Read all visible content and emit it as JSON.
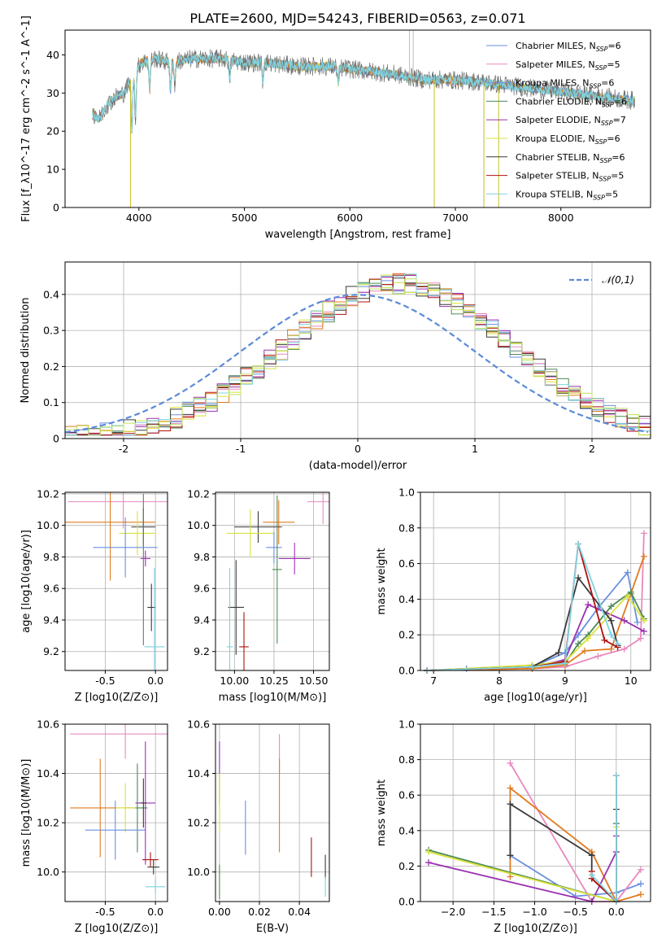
{
  "figure_title": "PLATE=2600, MJD=54243, FIBERID=0563, z=0.071",
  "colors": {
    "chabrier_miles": "#6a8fe0",
    "salpeter_miles": "#e889c0",
    "kroupa_miles": "#6a8fe0",
    "chabrier_elodie": "#4d8a55",
    "salpeter_elodie": "#9b30b0",
    "kroupa_elodie": "#d8e23c",
    "chabrier_stelib": "#3a3a3a",
    "salpeter_stelib": "#b01010",
    "kroupa_stelib": "#7fd3e0",
    "orange": "#e07b1f",
    "olive": "#bfe060",
    "spectrum": "#707070"
  },
  "chart_data": [
    {
      "type": "line",
      "title": "PLATE=2600, MJD=54243, FIBERID=0563, z=0.071",
      "xlabel": "wavelength [Angstrom, rest frame]",
      "ylabel": "Flux [f_λ10^-17 erg cm^-2 s^-1 A^-1]",
      "xlim": [
        3300,
        8850
      ],
      "ylim": [
        0,
        46.5
      ],
      "xticks": [
        4000,
        5000,
        6000,
        7000,
        8000
      ],
      "yticks": [
        0,
        10,
        20,
        30,
        40
      ],
      "legend": [
        "Chabrier MILES, N_SSP=6",
        "Salpeter MILES, N_SSP=5",
        "Kroupa MILES, N_SSP=6",
        "Chabrier ELODIE, N_SSP=6",
        "Salpeter ELODIE, N_SSP=7",
        "Kroupa ELODIE, N_SSP=6",
        "Chabrier STELIB, N_SSP=6",
        "Salpeter STELIB, N_SSP=5",
        "Kroupa STELIB, N_SSP=5"
      ],
      "legend_keys": [
        "chabrier_miles",
        "salpeter_miles",
        "kroupa_miles",
        "chabrier_elodie",
        "salpeter_elodie",
        "kroupa_elodie",
        "chabrier_stelib",
        "salpeter_stelib",
        "kroupa_stelib"
      ],
      "legend_placement": "right",
      "spectrum_envelope": {
        "x": [
          3560,
          3620,
          3700,
          3780,
          3860,
          3950,
          4020,
          4150,
          4300,
          4500,
          4800,
          5000,
          5200,
          5500,
          5800,
          6100,
          6400,
          6700,
          6900,
          7200,
          7500,
          7800,
          8100,
          8400,
          8700
        ],
        "y": [
          25,
          23,
          27,
          29,
          30,
          35,
          38,
          39,
          38,
          39,
          39,
          38,
          38,
          37,
          37,
          36,
          35,
          33.5,
          33.5,
          33,
          32,
          31,
          30,
          29,
          28
        ]
      }
    },
    {
      "type": "histogram",
      "xlabel": "(data-model)/error",
      "ylabel": "Normed distribution",
      "xlim": [
        -2.5,
        2.5
      ],
      "ylim": [
        0,
        0.49
      ],
      "xticks": [
        -2,
        -1,
        0,
        1,
        2
      ],
      "yticks": [
        0.0,
        0.1,
        0.2,
        0.3,
        0.4
      ],
      "legend": [
        "𝒩(0,1)"
      ],
      "legend_placement": "top-right",
      "grid": true
    },
    {
      "type": "scatter",
      "xlabel": "Z [log10(Z/Z⊙)]",
      "ylabel": "age  [log10(age/yr)]",
      "xlim": [
        -0.9,
        0.12
      ],
      "ylim": [
        9.08,
        10.21
      ],
      "xticks": [
        -0.5,
        0.0
      ],
      "yticks": [
        9.2,
        9.4,
        9.6,
        9.8,
        10.0,
        10.2
      ],
      "points": [
        {
          "c": "salpeter_miles",
          "x": -0.32,
          "y": 10.15,
          "ex": 0.55,
          "ey": 0.17
        },
        {
          "c": "orange",
          "x": -0.45,
          "y": 10.02,
          "ex": 0.45,
          "ey": 0.37
        },
        {
          "c": "chabrier_stelib",
          "x": -0.12,
          "y": 9.99,
          "ex": 0.12,
          "ey": 0.12
        },
        {
          "c": "kroupa_elodie",
          "x": -0.18,
          "y": 9.95,
          "ex": 0.18,
          "ey": 0.14
        },
        {
          "c": "chabrier_miles",
          "x": -0.3,
          "y": 9.86,
          "ex": 0.32,
          "ey": 0.19
        },
        {
          "c": "salpeter_elodie",
          "x": -0.1,
          "y": 9.79,
          "ex": 0.05,
          "ey": 0.05
        },
        {
          "c": "chabrier_elodie",
          "x": -0.12,
          "y": 9.72,
          "ex": 0.0,
          "ey": 0.48
        },
        {
          "c": "chabrier_stelib",
          "x": -0.04,
          "y": 9.48,
          "ex": 0.04,
          "ey": 0.15
        },
        {
          "c": "kroupa_stelib",
          "x": -0.01,
          "y": 9.23,
          "ex": 0.1,
          "ey": 0.5
        }
      ]
    },
    {
      "type": "scatter",
      "xlabel": "mass [log10(M/M⊙)]",
      "ylabel": "",
      "xlim": [
        9.88,
        10.6
      ],
      "ylim": [
        9.08,
        10.21
      ],
      "xticks": [
        10.0,
        10.25,
        10.5
      ],
      "yticks": [
        9.2,
        9.4,
        9.6,
        9.8,
        10.0,
        10.2
      ],
      "points": [
        {
          "c": "salpeter_miles",
          "x": 10.56,
          "y": 10.15,
          "ex": 0.1,
          "ey": 0.14
        },
        {
          "c": "orange",
          "x": 10.28,
          "y": 10.02,
          "ex": 0.1,
          "ey": 0.14
        },
        {
          "c": "chabrier_stelib",
          "x": 10.15,
          "y": 9.99,
          "ex": 0.15,
          "ey": 0.1
        },
        {
          "c": "kroupa_elodie",
          "x": 10.1,
          "y": 9.95,
          "ex": 0.15,
          "ey": 0.15
        },
        {
          "c": "chabrier_miles",
          "x": 10.25,
          "y": 9.86,
          "ex": 0.05,
          "ey": 0.1
        },
        {
          "c": "salpeter_elodie",
          "x": 10.38,
          "y": 9.79,
          "ex": 0.1,
          "ey": 0.1
        },
        {
          "c": "chabrier_elodie",
          "x": 10.27,
          "y": 9.72,
          "ex": 0.03,
          "ey": 0.47
        },
        {
          "c": "chabrier_stelib",
          "x": 10.01,
          "y": 9.48,
          "ex": 0.05,
          "ey": 0.3
        },
        {
          "c": "salpeter_stelib",
          "x": 10.06,
          "y": 9.23,
          "ex": 0.03,
          "ey": 0.22
        },
        {
          "c": "kroupa_stelib",
          "x": 9.97,
          "y": 9.23,
          "ex": 0.02,
          "ey": 0.5
        }
      ]
    },
    {
      "type": "line",
      "xlabel": "age  [log10(age/yr)]",
      "ylabel": "mass weight",
      "xlim": [
        6.8,
        10.3
      ],
      "ylim": [
        0,
        1.0
      ],
      "xticks": [
        7,
        8,
        9,
        10
      ],
      "yticks": [
        0.0,
        0.2,
        0.4,
        0.6,
        0.8,
        1.0
      ],
      "series": [
        {
          "c": "chabrier_miles",
          "x": [
            6.9,
            7.5,
            8.5,
            9.0,
            9.2,
            9.5,
            9.95,
            10.1
          ],
          "y": [
            0.0,
            0.01,
            0.02,
            0.1,
            0.2,
            0.35,
            0.55,
            0.27
          ]
        },
        {
          "c": "salpeter_miles",
          "x": [
            6.9,
            8.5,
            9.0,
            9.5,
            9.9,
            10.15,
            10.2
          ],
          "y": [
            0.0,
            0.01,
            0.02,
            0.08,
            0.12,
            0.18,
            0.77
          ]
        },
        {
          "c": "orange",
          "x": [
            6.9,
            8.5,
            9.0,
            9.3,
            9.7,
            10.0,
            10.2
          ],
          "y": [
            0.0,
            0.01,
            0.03,
            0.11,
            0.12,
            0.43,
            0.64
          ]
        },
        {
          "c": "chabrier_elodie",
          "x": [
            6.9,
            8.5,
            9.0,
            9.2,
            9.35,
            9.7,
            10.0,
            10.2
          ],
          "y": [
            0.0,
            0.02,
            0.04,
            0.15,
            0.2,
            0.36,
            0.44,
            0.29
          ]
        },
        {
          "c": "salpeter_elodie",
          "x": [
            6.9,
            8.5,
            9.0,
            9.35,
            9.9,
            10.2
          ],
          "y": [
            0.0,
            0.02,
            0.06,
            0.37,
            0.28,
            0.22
          ]
        },
        {
          "c": "kroupa_elodie",
          "x": [
            6.9,
            8.5,
            9.0,
            9.35,
            9.95,
            10.2
          ],
          "y": [
            0.0,
            0.03,
            0.05,
            0.18,
            0.42,
            0.28
          ]
        },
        {
          "c": "chabrier_stelib",
          "x": [
            6.9,
            8.5,
            8.9,
            9.2,
            9.7,
            9.8
          ],
          "y": [
            0.0,
            0.02,
            0.1,
            0.52,
            0.28,
            0.14
          ]
        },
        {
          "c": "salpeter_stelib",
          "x": [
            6.9,
            8.5,
            9.0,
            9.2,
            9.6,
            9.8
          ],
          "y": [
            0.0,
            0.02,
            0.05,
            0.71,
            0.17,
            0.13
          ]
        },
        {
          "c": "kroupa_stelib",
          "x": [
            6.9,
            8.5,
            9.0,
            9.2,
            9.7,
            9.8
          ],
          "y": [
            0.0,
            0.02,
            0.04,
            0.71,
            0.2,
            0.15
          ]
        }
      ]
    },
    {
      "type": "scatter",
      "xlabel": "Z [log10(Z/Z⊙)]",
      "ylabel": "mass [log10(M/M⊙)]",
      "xlim": [
        -0.9,
        0.12
      ],
      "ylim": [
        9.88,
        10.6
      ],
      "xticks": [
        -0.5,
        0.0
      ],
      "yticks": [
        10.0,
        10.2,
        10.4,
        10.6
      ],
      "points": [
        {
          "c": "salpeter_miles",
          "x": -0.3,
          "y": 10.56,
          "ex": 0.55,
          "ey": 0.1
        },
        {
          "c": "orange",
          "x": -0.55,
          "y": 10.26,
          "ex": 0.3,
          "ey": 0.2
        },
        {
          "c": "chabrier_elodie",
          "x": -0.18,
          "y": 10.26,
          "ex": 0.1,
          "ey": 0.18
        },
        {
          "c": "kroupa_elodie",
          "x": -0.3,
          "y": 10.26,
          "ex": 0.1,
          "ey": 0.1
        },
        {
          "c": "chabrier_miles",
          "x": -0.4,
          "y": 10.17,
          "ex": 0.3,
          "ey": 0.12
        },
        {
          "c": "salpeter_elodie",
          "x": -0.1,
          "y": 10.28,
          "ex": 0.1,
          "ey": 0.25
        },
        {
          "c": "chabrier_stelib",
          "x": -0.12,
          "y": 10.28,
          "ex": 0.03,
          "ey": 0.1
        },
        {
          "c": "salpeter_stelib",
          "x": -0.05,
          "y": 10.05,
          "ex": 0.08,
          "ey": 0.03
        },
        {
          "c": "chabrier_stelib",
          "x": -0.02,
          "y": 10.02,
          "ex": 0.06,
          "ey": 0.03
        },
        {
          "c": "kroupa_stelib",
          "x": 0.0,
          "y": 9.94,
          "ex": 0.1,
          "ey": 0.03
        }
      ]
    },
    {
      "type": "scatter",
      "xlabel": "E(B-V)",
      "ylabel": "",
      "xlim": [
        -0.002,
        0.055
      ],
      "ylim": [
        9.88,
        10.6
      ],
      "xticks": [
        0.0,
        0.02,
        0.04
      ],
      "yticks": [
        10.0,
        10.2,
        10.4,
        10.6
      ],
      "points": [
        {
          "c": "salpeter_elodie",
          "x": 0.0,
          "y": 10.4,
          "ey": 0.13
        },
        {
          "c": "kroupa_elodie",
          "x": 0.0,
          "y": 10.28,
          "ey": 0.12
        },
        {
          "c": "chabrier_elodie",
          "x": 0.0,
          "y": 9.96,
          "ey": 0.07
        },
        {
          "c": "chabrier_miles",
          "x": 0.013,
          "y": 10.18,
          "ey": 0.11
        },
        {
          "c": "salpeter_miles",
          "x": 0.03,
          "y": 10.48,
          "ey": 0.08
        },
        {
          "c": "orange",
          "x": 0.03,
          "y": 10.27,
          "ey": 0.19
        },
        {
          "c": "salpeter_stelib",
          "x": 0.046,
          "y": 10.06,
          "ey": 0.08
        },
        {
          "c": "chabrier_stelib",
          "x": 0.053,
          "y": 10.02,
          "ey": 0.05
        },
        {
          "c": "kroupa_stelib",
          "x": 0.053,
          "y": 9.94,
          "ey": 0.04
        }
      ]
    },
    {
      "type": "line",
      "xlabel": "Z [log10(Z/Z⊙)]",
      "ylabel": "mass weight",
      "xlim": [
        -2.4,
        0.42
      ],
      "ylim": [
        0,
        1.0
      ],
      "xticks": [
        -2.0,
        -1.5,
        -1.0,
        -0.5,
        0.0
      ],
      "yticks": [
        0.0,
        0.2,
        0.4,
        0.6,
        0.8,
        1.0
      ],
      "series": [
        {
          "c": "chabrier_miles",
          "x": [
            -1.3,
            -0.5,
            0.0,
            0.3
          ],
          "y": [
            0.26,
            0.03,
            0.05,
            0.1
          ]
        },
        {
          "c": "salpeter_miles",
          "x": [
            -1.3,
            -0.3,
            0.0,
            0.3
          ],
          "y": [
            0.78,
            0.0,
            0.0,
            0.18
          ]
        },
        {
          "c": "orange",
          "x": [
            -1.3,
            -1.3,
            -0.3,
            0.0,
            0.3
          ],
          "y": [
            0.14,
            0.64,
            0.28,
            0.0,
            0.04
          ]
        },
        {
          "c": "chabrier_elodie",
          "x": [
            -2.3,
            0.0,
            0.0
          ],
          "y": [
            0.29,
            0.0,
            0.44
          ]
        },
        {
          "c": "salpeter_elodie",
          "x": [
            -2.3,
            -0.3,
            0.0,
            0.0
          ],
          "y": [
            0.22,
            0.0,
            0.28,
            0.37
          ]
        },
        {
          "c": "kroupa_elodie",
          "x": [
            -2.3,
            0.0,
            0.0
          ],
          "y": [
            0.28,
            0.0,
            0.42
          ]
        },
        {
          "c": "chabrier_stelib",
          "x": [
            -1.3,
            -1.3,
            -0.3,
            -0.3,
            0.0,
            0.0
          ],
          "y": [
            0.26,
            0.55,
            0.26,
            0.13,
            0.0,
            0.52
          ]
        },
        {
          "c": "salpeter_stelib",
          "x": [
            -0.3,
            -0.3,
            0.0,
            0.0
          ],
          "y": [
            0.17,
            0.13,
            0.0,
            0.71
          ]
        },
        {
          "c": "kroupa_stelib",
          "x": [
            -0.3,
            0.0,
            0.0
          ],
          "y": [
            0.15,
            0.0,
            0.71
          ]
        }
      ]
    }
  ]
}
